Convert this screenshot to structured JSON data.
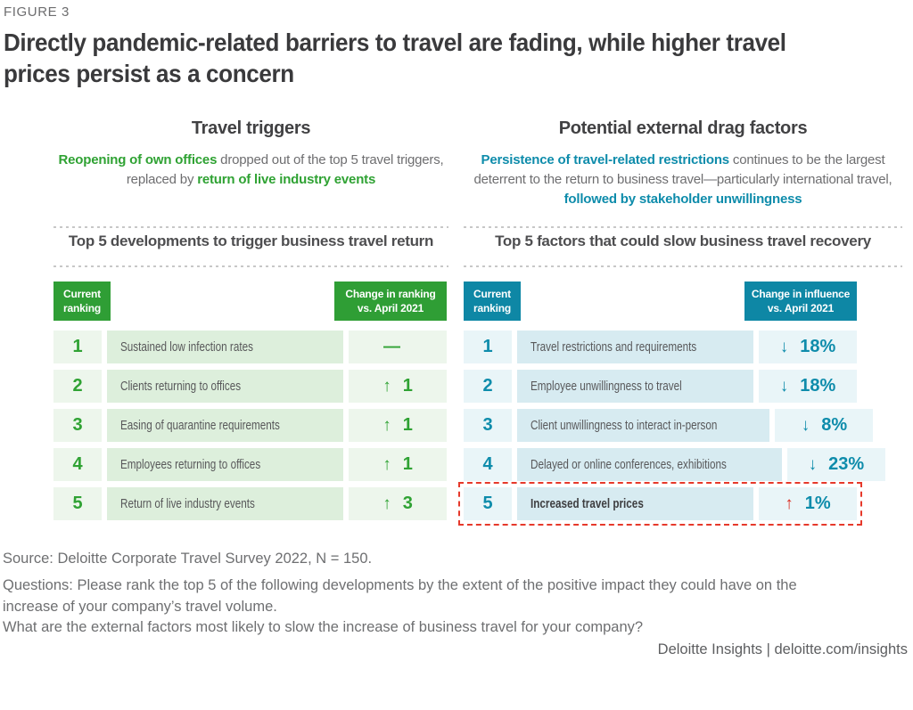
{
  "figure_label": "FIGURE 3",
  "title": {
    "line1": "Directly pandemic-related barriers to travel are fading, while higher travel",
    "line2": "prices persist as a concern"
  },
  "colors": {
    "green_accent": "#2fa233",
    "green_badge": "#2f9e35",
    "green_row_light": "#edf6ec",
    "green_row_label": "#ddefdc",
    "teal_accent": "#0e8cab",
    "teal_badge": "#0e87a5",
    "teal_row_light": "#e9f5f8",
    "teal_row_label": "#d7ebf1",
    "highlight_red": "#da291c",
    "text_dark": "#3a3a3c",
    "text_gray": "#6e6f71"
  },
  "left_panel": {
    "heading": "Travel triggers",
    "intro": [
      {
        "text": "Reopening of own offices",
        "class": "accent"
      },
      {
        "text": " dropped out of the top 5 travel triggers, replaced by "
      },
      {
        "text": "return of live industry events",
        "class": "accent"
      }
    ],
    "subheading": "Top 5 developments to trigger business travel return",
    "badge_left": "Current\nranking",
    "badge_right": "Change in ranking\nvs. April 2021",
    "rows": [
      {
        "rank": "1",
        "label": "Sustained low infection rates",
        "arrow": "—",
        "value": ""
      },
      {
        "rank": "2",
        "label": "Clients returning to offices",
        "arrow": "↑",
        "value": "1"
      },
      {
        "rank": "3",
        "label": "Easing of quarantine requirements",
        "arrow": "↑",
        "value": "1"
      },
      {
        "rank": "4",
        "label": "Employees returning to offices",
        "arrow": "↑",
        "value": "1"
      },
      {
        "rank": "5",
        "label": "Return of live industry events",
        "arrow": "↑",
        "value": "3"
      }
    ]
  },
  "right_panel": {
    "heading": "Potential external drag factors",
    "intro": [
      {
        "text": "Persistence of travel-related restrictions",
        "class": "accent"
      },
      {
        "text": " continues to be the largest deterrent to the return to business travel—particularly international travel, "
      },
      {
        "text": "followed by stakeholder unwillingness",
        "class": "accent"
      }
    ],
    "subheading": "Top 5 factors that could slow business travel recovery",
    "badge_left": "Current\nranking",
    "badge_right": "Change in influence\nvs. April 2021",
    "rows": [
      {
        "rank": "1",
        "label": "Travel restrictions and requirements",
        "arrow": "↓",
        "value": "18%"
      },
      {
        "rank": "2",
        "label": "Employee unwillingness to travel",
        "arrow": "↓",
        "value": "18%"
      },
      {
        "rank": "3",
        "label": "Client unwillingness to interact in-person",
        "arrow": "↓",
        "value": "8%"
      },
      {
        "rank": "4",
        "label": "Delayed or online conferences, exhibitions",
        "arrow": "↓",
        "value": "23%"
      },
      {
        "rank": "5",
        "label": "Increased travel prices",
        "arrow": "↑",
        "value": "1%",
        "row_class": "highlight",
        "label_class": "strong",
        "arrow_class": "red"
      }
    ]
  },
  "footer": {
    "source": "Source: Deloitte Corporate Travel Survey 2022, N = 150.",
    "question_lines": [
      "Questions: Please rank the top 5 of the following developments by the extent of the positive impact they could have on the",
      "increase of your company’s travel volume.",
      "What are the external factors most likely to slow the increase of business travel for your company?"
    ],
    "brand": "Deloitte Insights | deloitte.com/insights"
  },
  "chart_data": [
    {
      "type": "table",
      "title": "Top 5 developments to trigger business travel return",
      "columns": [
        "Current ranking",
        "Development",
        "Change in ranking vs. April 2021"
      ],
      "rows": [
        [
          1,
          "Sustained low infection rates",
          "no change"
        ],
        [
          2,
          "Clients returning to offices",
          "+1"
        ],
        [
          3,
          "Easing of quarantine requirements",
          "+1"
        ],
        [
          4,
          "Employees returning to offices",
          "+1"
        ],
        [
          5,
          "Return of live industry events",
          "+3"
        ]
      ]
    },
    {
      "type": "table",
      "title": "Top 5 factors that could slow business travel recovery",
      "columns": [
        "Current ranking",
        "Factor",
        "Change in influence vs. April 2021"
      ],
      "rows": [
        [
          1,
          "Travel restrictions and requirements",
          "-18%"
        ],
        [
          2,
          "Employee unwillingness to travel",
          "-18%"
        ],
        [
          3,
          "Client unwillingness to interact in-person",
          "-8%"
        ],
        [
          4,
          "Delayed or online conferences, exhibitions",
          "-23%"
        ],
        [
          5,
          "Increased travel prices",
          "+1%"
        ]
      ]
    }
  ]
}
